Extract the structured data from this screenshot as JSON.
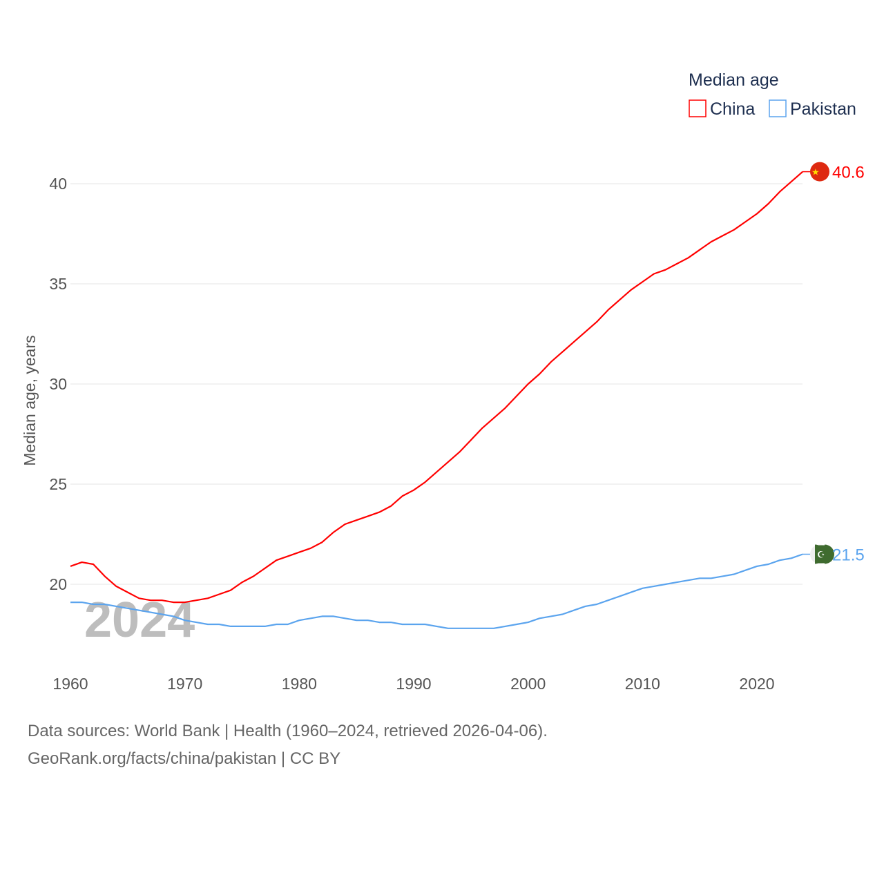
{
  "chart_data": {
    "type": "line",
    "title": "Median age",
    "xlabel": "",
    "ylabel": "Median age, years",
    "xlim": [
      1960,
      2024
    ],
    "ylim": [
      16.5,
      42
    ],
    "xticks": [
      1960,
      1970,
      1980,
      1990,
      2000,
      2010,
      2020
    ],
    "yticks": [
      20,
      25,
      30,
      35,
      40
    ],
    "grid": "horizontal",
    "legend_placement": "top-right",
    "year_watermark": "2024",
    "x_start": 1960,
    "series": [
      {
        "name": "China",
        "color": "#ff0000",
        "flag": "china-flag-icon",
        "end_label": "40.6",
        "values": [
          20.9,
          21.1,
          21.0,
          20.4,
          19.9,
          19.6,
          19.3,
          19.2,
          19.2,
          19.1,
          19.1,
          19.2,
          19.3,
          19.5,
          19.7,
          20.1,
          20.4,
          20.8,
          21.2,
          21.4,
          21.6,
          21.8,
          22.1,
          22.6,
          23.0,
          23.2,
          23.4,
          23.6,
          23.9,
          24.4,
          24.7,
          25.1,
          25.6,
          26.1,
          26.6,
          27.2,
          27.8,
          28.3,
          28.8,
          29.4,
          30.0,
          30.5,
          31.1,
          31.6,
          32.1,
          32.6,
          33.1,
          33.7,
          34.2,
          34.7,
          35.1,
          35.5,
          35.7,
          36.0,
          36.3,
          36.7,
          37.1,
          37.4,
          37.7,
          38.1,
          38.5,
          39.0,
          39.6,
          40.1,
          40.6
        ]
      },
      {
        "name": "Pakistan",
        "color": "#5ba4ee",
        "flag": "pakistan-flag-icon",
        "end_label": "21.5",
        "values": [
          19.1,
          19.1,
          19.0,
          19.0,
          18.9,
          18.8,
          18.7,
          18.6,
          18.5,
          18.4,
          18.2,
          18.1,
          18.0,
          18.0,
          17.9,
          17.9,
          17.9,
          17.9,
          18.0,
          18.0,
          18.2,
          18.3,
          18.4,
          18.4,
          18.3,
          18.2,
          18.2,
          18.1,
          18.1,
          18.0,
          18.0,
          18.0,
          17.9,
          17.8,
          17.8,
          17.8,
          17.8,
          17.8,
          17.9,
          18.0,
          18.1,
          18.3,
          18.4,
          18.5,
          18.7,
          18.9,
          19.0,
          19.2,
          19.4,
          19.6,
          19.8,
          19.9,
          20.0,
          20.1,
          20.2,
          20.3,
          20.3,
          20.4,
          20.5,
          20.7,
          20.9,
          21.0,
          21.2,
          21.3,
          21.5
        ]
      }
    ]
  },
  "footer": {
    "sources": "Data sources: World Bank | Health (1960–2024, retrieved 2026-04-06).",
    "credit": "GeoRank.org/facts/china/pakistan | CC BY"
  }
}
